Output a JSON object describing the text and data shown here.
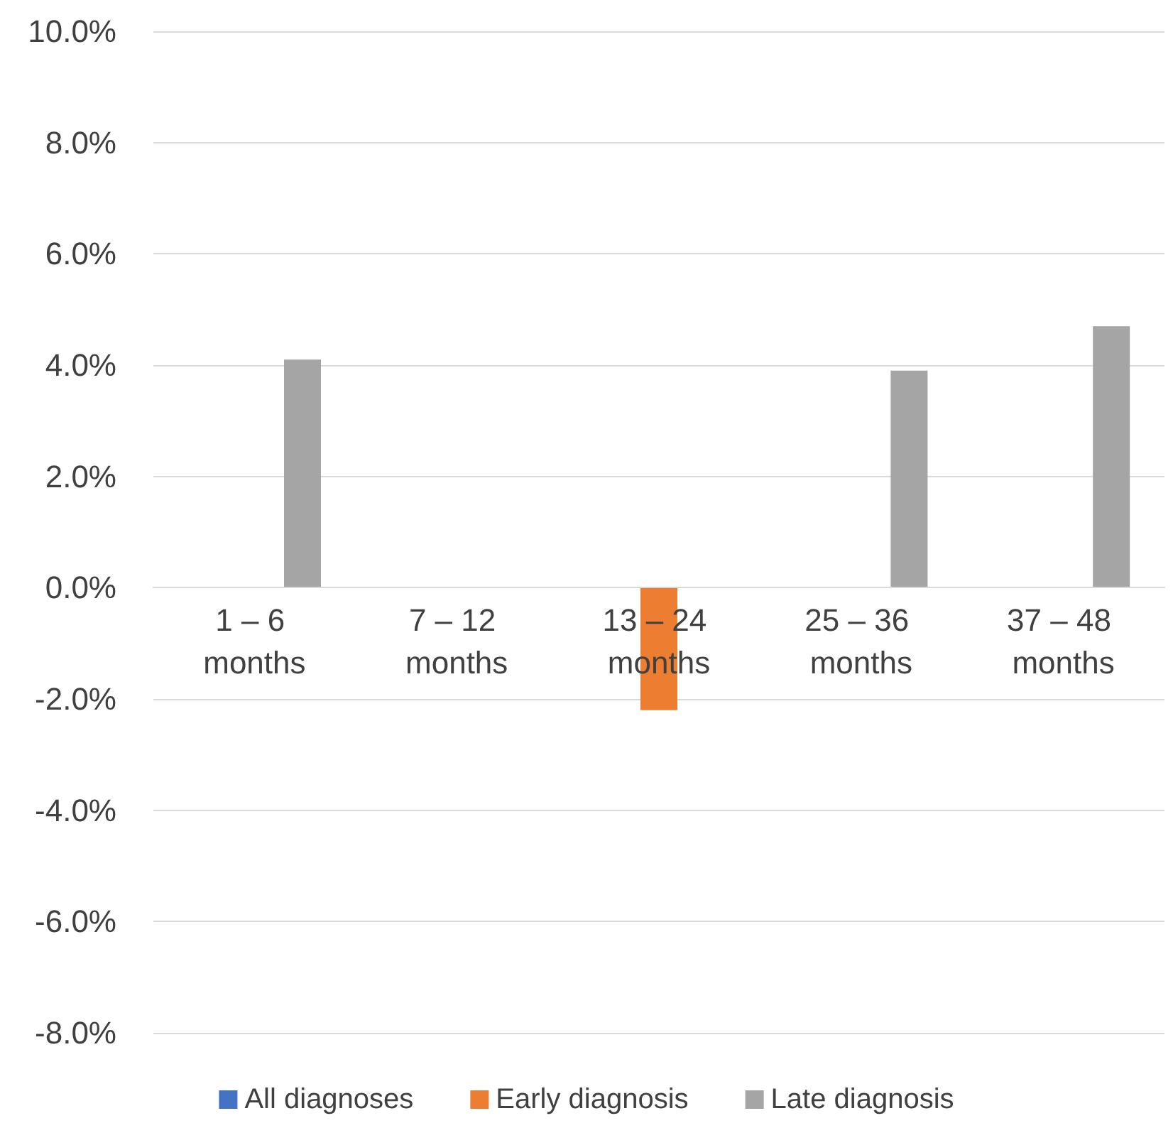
{
  "chart_data": {
    "type": "bar",
    "categories": [
      "1 – 6 months",
      "7 – 12 months",
      "13 – 24 months",
      "25 – 36 months",
      "37 – 48 months"
    ],
    "series": [
      {
        "name": "All diagnoses",
        "color": "#4472c4",
        "values": [
          0,
          0,
          0,
          0,
          0
        ]
      },
      {
        "name": "Early diagnosis",
        "color": "#ed7d31",
        "values": [
          0,
          0,
          -2.2,
          0,
          0
        ]
      },
      {
        "name": "Late diagnosis",
        "color": "#a5a5a5",
        "values": [
          4.1,
          0,
          0,
          3.9,
          4.7
        ]
      }
    ],
    "ylim": [
      -8,
      10
    ],
    "yticks": [
      {
        "value": -8,
        "label": "-8.0%"
      },
      {
        "value": -6,
        "label": "-6.0%"
      },
      {
        "value": -4,
        "label": "-4.0%"
      },
      {
        "value": -2,
        "label": "-2.0%"
      },
      {
        "value": 0,
        "label": "0.0%"
      },
      {
        "value": 2,
        "label": "2.0%"
      },
      {
        "value": 4,
        "label": "4.0%"
      },
      {
        "value": 6,
        "label": "6.0%"
      },
      {
        "value": 8,
        "label": "8.0%"
      },
      {
        "value": 10,
        "label": "10.0%"
      }
    ],
    "grid": "y",
    "legend": "bottom"
  }
}
